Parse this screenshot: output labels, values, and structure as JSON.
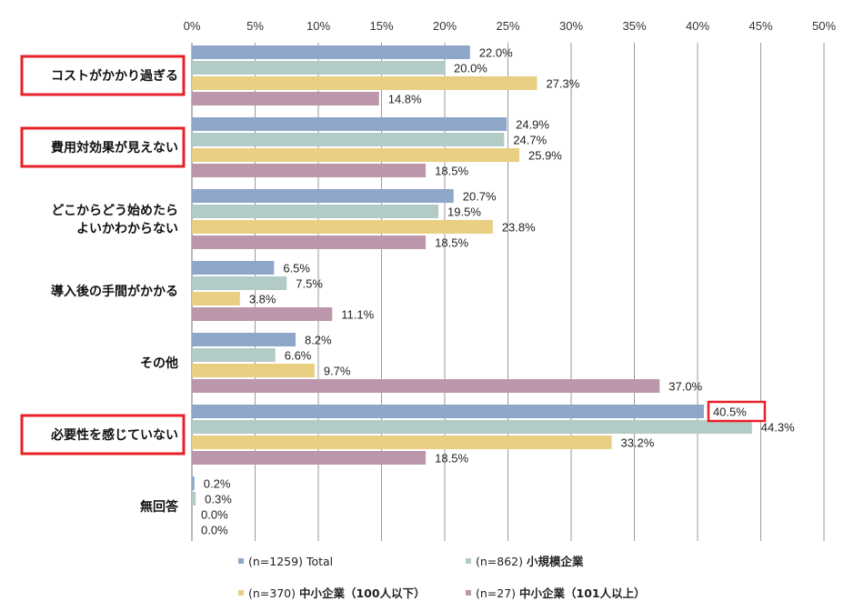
{
  "chart_data": {
    "type": "bar",
    "orientation": "horizontal",
    "categories": [
      [
        "コストがかかり過ぎる"
      ],
      [
        "費用対効果が見えない"
      ],
      [
        "どこからどう始めたら",
        "よいかわからない"
      ],
      [
        "導入後の手間がかかる"
      ],
      [
        "その他"
      ],
      [
        "必要性を感じていない"
      ],
      [
        "無回答"
      ]
    ],
    "highlighted_categories": [
      0,
      1,
      5
    ],
    "highlighted_value": {
      "series": 0,
      "category": 5
    },
    "series": [
      {
        "name_plain": "(n=1259) Total",
        "name_bold": "",
        "color": "#8eA6C8",
        "values": [
          22.0,
          24.9,
          20.7,
          6.5,
          8.2,
          40.5,
          0.2
        ]
      },
      {
        "name_plain": "(n=862) ",
        "name_bold": "小規模企業",
        "color": "#B3CBC6",
        "values": [
          20.0,
          24.7,
          19.5,
          7.5,
          6.6,
          44.3,
          0.3
        ]
      },
      {
        "name_plain": "(n=370) ",
        "name_bold": "中小企業（100人以下）",
        "color": "#E9CF82",
        "values": [
          27.3,
          25.9,
          23.8,
          3.8,
          9.7,
          33.2,
          0.0
        ]
      },
      {
        "name_plain": "(n=27) ",
        "name_bold": "中小企業（101人以上）",
        "color": "#BC97AB",
        "values": [
          14.8,
          18.5,
          18.5,
          11.1,
          37.0,
          18.5,
          0.0
        ]
      }
    ],
    "value_suffix": "%",
    "xlim": [
      0,
      50
    ],
    "xticks": [
      "0%",
      "5%",
      "10%",
      "15%",
      "20%",
      "25%",
      "30%",
      "35%",
      "40%",
      "45%",
      "50%"
    ],
    "grid": "vertical",
    "legend_position": "bottom",
    "highlight_color": "#E8202A",
    "title": "",
    "xlabel": "",
    "ylabel": ""
  }
}
